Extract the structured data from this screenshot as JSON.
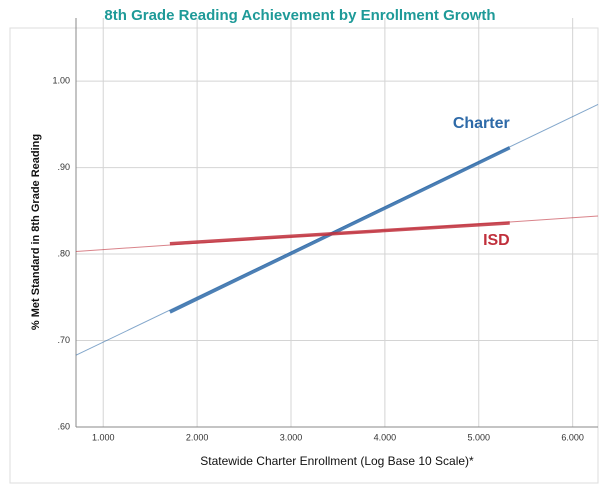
{
  "chart_data": {
    "type": "line",
    "title": "8th Grade Reading Achievement by Enrollment Growth",
    "x_label": "Statewide Charter Enrollment (Log Base 10 Scale)*",
    "y_label": "% Met Standard in 8th Grade Reading",
    "xlim": [
      0.71,
      6.27
    ],
    "ylim": [
      0.6,
      1.073
    ],
    "xticks": [
      {
        "value": 1,
        "label": "1.000"
      },
      {
        "value": 2,
        "label": "2.000"
      },
      {
        "value": 3,
        "label": "3.000"
      },
      {
        "value": 4,
        "label": "4.000"
      },
      {
        "value": 5,
        "label": "5.000"
      },
      {
        "value": 6,
        "label": "6.000"
      }
    ],
    "yticks": [
      {
        "value": 0.6,
        "label": ".60"
      },
      {
        "value": 0.7,
        "label": ".70"
      },
      {
        "value": 0.8,
        "label": ".80"
      },
      {
        "value": 0.9,
        "label": ".90"
      },
      {
        "value": 1.0,
        "label": "1.00"
      }
    ],
    "grid": true,
    "series": [
      {
        "name": "Charter",
        "color": "#2e6aa8",
        "x": [
          0.71,
          6.27
        ],
        "values": [
          0.683,
          0.973
        ],
        "observed_x": [
          1.71,
          5.33
        ],
        "observed_values": [
          0.733,
          0.923
        ]
      },
      {
        "name": "ISD",
        "color": "#c0303c",
        "x": [
          0.71,
          6.27
        ],
        "values": [
          0.803,
          0.844
        ],
        "observed_x": [
          1.71,
          5.33
        ],
        "observed_values": [
          0.812,
          0.836
        ]
      }
    ]
  }
}
